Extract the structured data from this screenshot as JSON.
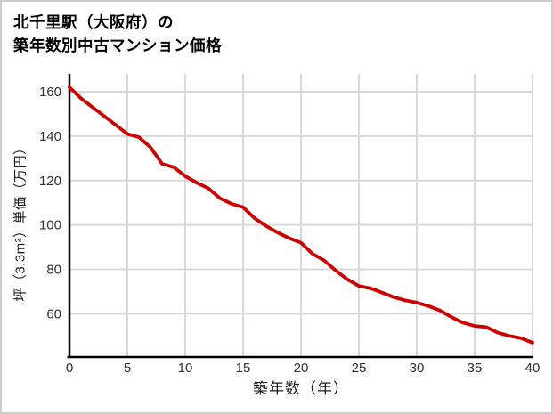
{
  "title": {
    "line1": "北千里駅（大阪府）の",
    "line2": "築年数別中古マンション価格"
  },
  "chart_data": {
    "type": "line",
    "title": "北千里駅（大阪府）の築年数別中古マンション価格",
    "xlabel": "築年数（年）",
    "ylabel": "坪（3.3m²）単価（万円）",
    "x": [
      0,
      1,
      2,
      3,
      4,
      5,
      6,
      7,
      8,
      9,
      10,
      11,
      12,
      13,
      14,
      15,
      16,
      17,
      18,
      19,
      20,
      21,
      22,
      23,
      24,
      25,
      26,
      27,
      28,
      29,
      30,
      31,
      32,
      33,
      34,
      35,
      36,
      37,
      38,
      39,
      40
    ],
    "values": [
      162,
      157,
      153,
      149,
      145,
      141,
      139.5,
      135,
      127.5,
      126,
      122,
      119,
      116.5,
      112,
      109.5,
      108,
      103,
      99.5,
      96.5,
      94,
      92,
      87,
      84,
      79.5,
      75.5,
      72.5,
      71.5,
      69.5,
      67.5,
      66,
      65,
      63.5,
      61.5,
      58.5,
      56,
      54.5,
      54,
      51.5,
      50,
      49,
      47
    ],
    "xticks": [
      0,
      5,
      10,
      15,
      20,
      25,
      30,
      35,
      40
    ],
    "yticks": [
      60,
      80,
      100,
      120,
      140,
      160
    ],
    "xlim": [
      0,
      40
    ],
    "ylim": [
      41,
      168
    ],
    "grid": true,
    "legend": "none",
    "line_color": "#cc0000",
    "grid_color": "#d9d9d9",
    "axis_color": "#000000",
    "tick_label_color": "#303030"
  }
}
